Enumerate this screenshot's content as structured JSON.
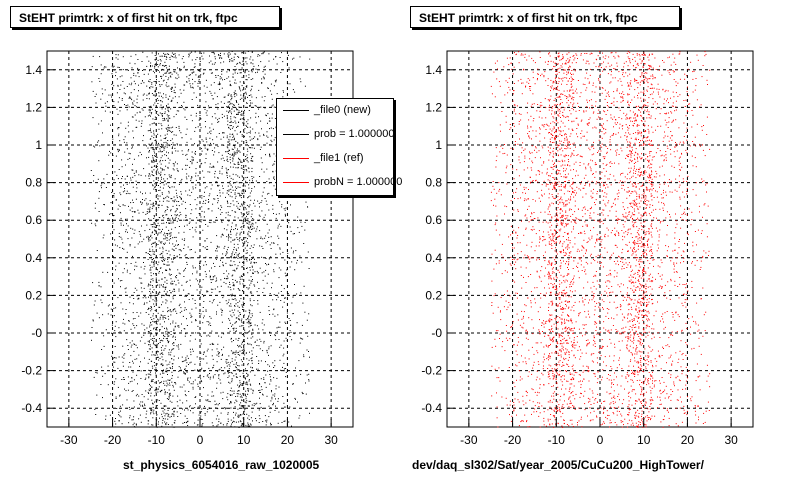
{
  "charts_text": {
    "left_title": "StEHT primtrk: x of first hit on trk, ftpc",
    "right_title": "StEHT primtrk: x of first hit on trk, ftpc",
    "left_xcaption": "st_physics_6054016_raw_1020005",
    "right_xcaption": "dev/daq_sl302/Sat/year_2005/CuCu200_HighTower/",
    "footer_faint": ""
  },
  "legend": {
    "entries": [
      {
        "label": "_file0 (new)",
        "color": "#000000"
      },
      {
        "label": "prob = 1.000000",
        "color": "#000000"
      },
      {
        "label": "_file1 (ref)",
        "color": "#ff0000"
      },
      {
        "label": "probN = 1.000000",
        "color": "#ff0000"
      }
    ]
  },
  "chart_data": [
    {
      "type": "scatter",
      "title": "StEHT primtrk: x of first hit on trk, ftpc",
      "xlabel": "st_physics_6054016_raw_1020005",
      "ylabel": "",
      "xlim": [
        -35,
        35
      ],
      "ylim": [
        -0.5,
        1.5
      ],
      "xticks": [
        -30,
        -20,
        -10,
        0,
        10,
        20,
        30
      ],
      "xtick_labels": [
        "-30",
        "-20",
        "-10",
        "0",
        "10",
        "20",
        "30"
      ],
      "yticks": [
        -0.4,
        -0.2,
        0,
        0.2,
        0.4,
        0.6,
        0.8,
        1,
        1.2,
        1.4
      ],
      "ytick_labels": [
        "-0.4",
        "-0.2",
        "-0",
        "0.2",
        "0.4",
        "0.6",
        "0.8",
        "1",
        "1.2",
        "1.4"
      ],
      "grid": true,
      "color": "#000000",
      "point_density": [
        {
          "x_range": [
            -25,
            -20
          ],
          "weight": 0.5
        },
        {
          "x_range": [
            -20,
            -12
          ],
          "weight": 1.0
        },
        {
          "x_range": [
            -12,
            -6
          ],
          "weight": 3.0
        },
        {
          "x_range": [
            -6,
            6
          ],
          "weight": 1.3
        },
        {
          "x_range": [
            6,
            12
          ],
          "weight": 3.0
        },
        {
          "x_range": [
            12,
            20
          ],
          "weight": 1.0
        },
        {
          "x_range": [
            20,
            25
          ],
          "weight": 0.5
        }
      ],
      "approx_points": 4500
    },
    {
      "type": "scatter",
      "title": "StEHT primtrk: x of first hit on trk, ftpc",
      "xlabel": "dev/daq_sl302/Sat/year_2005/CuCu200_HighTower/",
      "ylabel": "",
      "xlim": [
        -35,
        35
      ],
      "ylim": [
        -0.5,
        1.5
      ],
      "xticks": [
        -30,
        -20,
        -10,
        0,
        10,
        20,
        30
      ],
      "xtick_labels": [
        "-30",
        "-20",
        "-10",
        "0",
        "10",
        "20",
        "30"
      ],
      "yticks": [
        -0.4,
        -0.2,
        0,
        0.2,
        0.4,
        0.6,
        0.8,
        1,
        1.2,
        1.4
      ],
      "ytick_labels": [
        "-0.4",
        "-0.2",
        "-0",
        "0.2",
        "0.4",
        "0.6",
        "0.8",
        "1",
        "1.2",
        "1.4"
      ],
      "grid": true,
      "color": "#ff0000",
      "point_density": [
        {
          "x_range": [
            -25,
            -20
          ],
          "weight": 0.5
        },
        {
          "x_range": [
            -20,
            -12
          ],
          "weight": 1.0
        },
        {
          "x_range": [
            -12,
            -6
          ],
          "weight": 3.0
        },
        {
          "x_range": [
            -6,
            6
          ],
          "weight": 1.3
        },
        {
          "x_range": [
            6,
            12
          ],
          "weight": 3.0
        },
        {
          "x_range": [
            12,
            20
          ],
          "weight": 1.0
        },
        {
          "x_range": [
            20,
            25
          ],
          "weight": 0.5
        }
      ],
      "approx_points": 4500
    }
  ]
}
